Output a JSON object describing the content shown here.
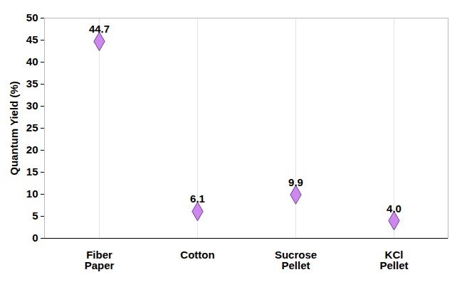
{
  "chart_data": {
    "type": "scatter",
    "categories": [
      "Fiber Paper",
      "Cotton",
      "Sucrose Pellet",
      "KCl Pellet"
    ],
    "values": [
      44.7,
      6.1,
      9.9,
      4.0
    ],
    "value_labels": [
      "44.7",
      "6.1",
      "9.9",
      "4.0"
    ],
    "data_labels": true,
    "y_label": "Quantum Yield (%)",
    "ylim": [
      0,
      50
    ],
    "yticks": [
      0,
      5,
      10,
      15,
      20,
      25,
      30,
      35,
      40,
      45,
      50
    ],
    "grid": true,
    "marker": "diamond",
    "color": "#cc88ee"
  }
}
